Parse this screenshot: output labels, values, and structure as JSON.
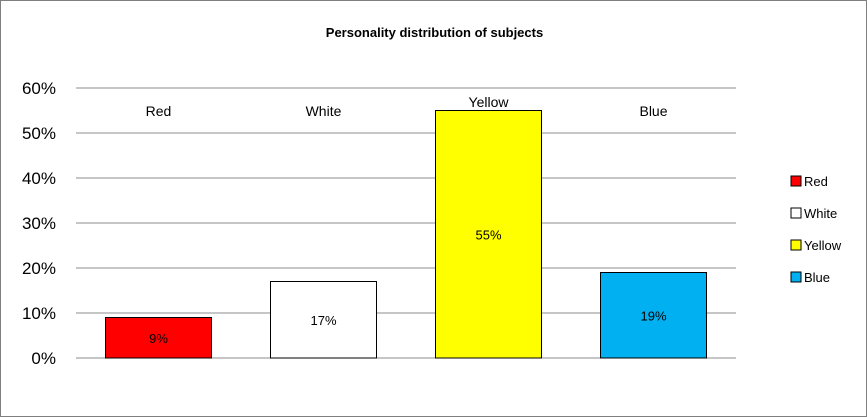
{
  "chart_data": {
    "type": "bar",
    "title": "Personality distribution of subjects",
    "categories": [
      "Red",
      "White",
      "Yellow",
      "Blue"
    ],
    "values": [
      0.09,
      0.17,
      0.55,
      0.19
    ],
    "data_labels": [
      "9%",
      "17%",
      "55%",
      "19%"
    ],
    "colors": [
      "#ff0000",
      "#ffffff",
      "#ffff00",
      "#00b0f0"
    ],
    "ylim": [
      0,
      0.6
    ],
    "yticks": [
      0,
      0.1,
      0.2,
      0.3,
      0.4,
      0.5,
      0.6
    ],
    "ytick_labels": [
      "0%",
      "10%",
      "20%",
      "30%",
      "40%",
      "50%",
      "60%"
    ],
    "grid": true,
    "legend": {
      "position": "right",
      "entries": [
        "Red",
        "White",
        "Yellow",
        "Blue"
      ]
    }
  }
}
